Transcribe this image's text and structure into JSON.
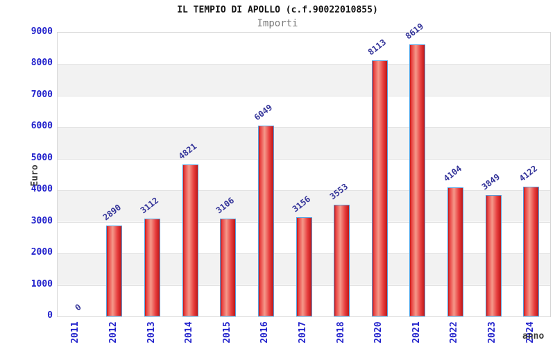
{
  "page": {
    "title": "IL TEMPIO DI APOLLO (c.f.90022010855)",
    "subtitle": "Importi"
  },
  "chart_data": {
    "type": "bar",
    "title": "IL TEMPIO DI APOLLO (c.f.90022010855)",
    "subtitle": "Importi",
    "xlabel": "anno",
    "ylabel": "Euro",
    "categories": [
      "2011",
      "2012",
      "2013",
      "2014",
      "2015",
      "2016",
      "2017",
      "2018",
      "2020",
      "2021",
      "2022",
      "2023",
      "2024"
    ],
    "values": [
      0,
      2890,
      3112,
      4821,
      3106,
      6049,
      3156,
      3553,
      8113,
      8619,
      4104,
      3849,
      4122
    ],
    "ylim": [
      0,
      9000
    ],
    "ytick_step": 1000,
    "grid": "horizontal-bands",
    "legend": "none"
  },
  "colors": {
    "title_color": "#111111",
    "subtitle_color": "#7a7a7a",
    "axis_label": "#2222cc",
    "value_label": "#333399",
    "axis_title_color": "#3c3c3c",
    "plot_border": "#d6d6d6",
    "band_gray": "#f2f2f2",
    "gridline": "#e3e3e3",
    "bar_border": "#55a0e0",
    "bar_dark": "#bf1616",
    "bar_mid": "#e84040",
    "bar_light": "#f5998a"
  }
}
